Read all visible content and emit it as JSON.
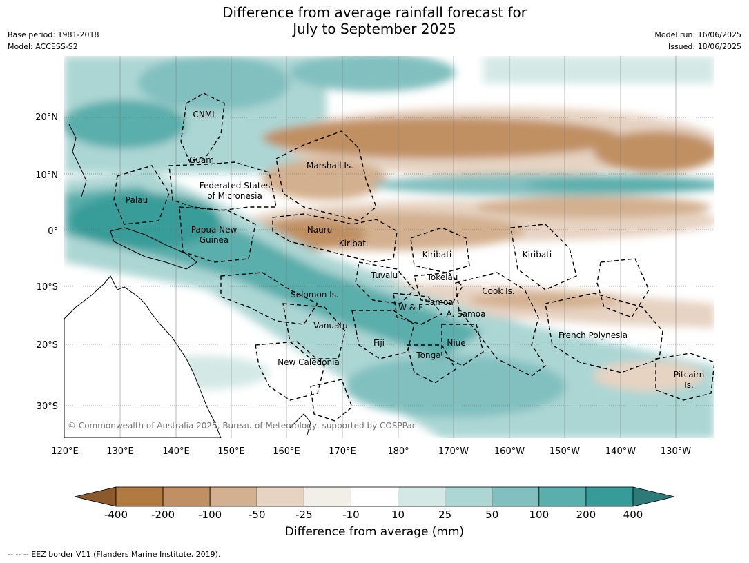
{
  "title_line1": "Difference from average rainfall forecast for",
  "title_line2": "July to September 2025",
  "meta": {
    "base_period": "Base period: 1981-2018",
    "model": "Model: ACCESS-S2",
    "model_run": "Model run: 16/06/2025",
    "issued": "Issued: 18/06/2025"
  },
  "map": {
    "lon_labels": [
      "120°E",
      "130°E",
      "140°E",
      "150°E",
      "160°E",
      "170°E",
      "180°",
      "170°W",
      "160°W",
      "150°W",
      "140°W",
      "130°W"
    ],
    "lat_labels": [
      "20°N",
      "10°N",
      "0°",
      "10°S",
      "20°S",
      "30°S"
    ],
    "regions": [
      "CNMI",
      "Guam",
      "Marshall Is.",
      "Federated States",
      "of Micronesia",
      "Palau",
      "Papua New",
      "Guinea",
      "Nauru",
      "Kiribati",
      "Kiribati",
      "Kiribati",
      "Tuvalu",
      "Tokelau",
      "Cook Is.",
      "Solomon Is.",
      "Samoa",
      "W & F",
      "A. Samoa",
      "Vanuatu",
      "Fiji",
      "Niue",
      "Tonga",
      "New Caledonia",
      "French Polynesia",
      "Pitcairn",
      "Is."
    ],
    "copyright": "© Commonwealth of Australia 2025, Bureau of Meteorology, supported by COSPPac"
  },
  "colorbar": {
    "ticks": [
      "-400",
      "-200",
      "-100",
      "-50",
      "-25",
      "-10",
      "10",
      "25",
      "50",
      "100",
      "200",
      "400"
    ],
    "colors": [
      "#8c5a2a",
      "#b07a40",
      "#c09064",
      "#d3b08f",
      "#e6d3c2",
      "#f2eee8",
      "#ffffff",
      "#d4e9e6",
      "#acd6d4",
      "#82c0bf",
      "#5aaeac",
      "#379c99",
      "#2c7a7a"
    ],
    "label": "Difference from average (mm)"
  },
  "footer": "--  --  -- EEZ border V11 (Flanders Marine Institute, 2019)."
}
